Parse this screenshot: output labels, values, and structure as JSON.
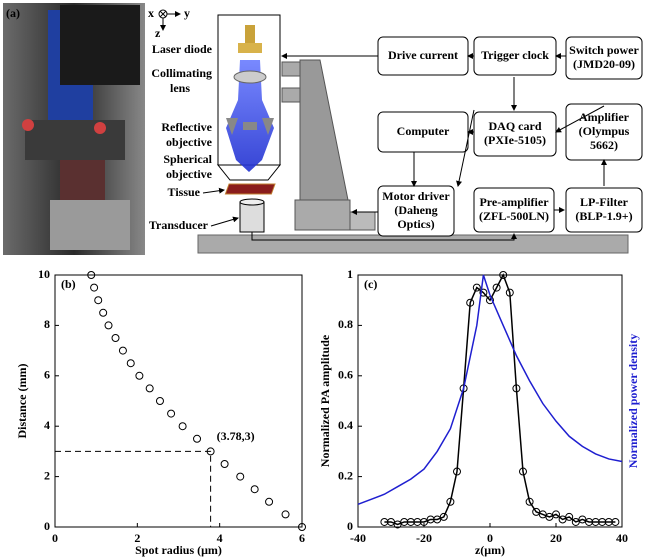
{
  "panel_a": {
    "label": "(a)",
    "axes": [
      "x",
      "y",
      "z"
    ],
    "components": [
      {
        "lines": [
          "Laser diode"
        ]
      },
      {
        "lines": [
          "Collimating",
          "lens"
        ]
      },
      {
        "lines": [
          "Reflective",
          "objective"
        ]
      },
      {
        "lines": [
          "Spherical",
          "objective"
        ]
      },
      {
        "lines": [
          "Tissue"
        ]
      },
      {
        "lines": [
          "Transducer"
        ]
      }
    ],
    "boxes": [
      {
        "lines": [
          "Drive current"
        ]
      },
      {
        "lines": [
          "Trigger clock"
        ]
      },
      {
        "lines": [
          "Switch power",
          "(JMD20-09)"
        ]
      },
      {
        "lines": [
          "Computer"
        ]
      },
      {
        "lines": [
          "DAQ card",
          "(PXIe-5105)"
        ]
      },
      {
        "lines": [
          "Amplifier",
          "(Olympus",
          "5662)"
        ]
      },
      {
        "lines": [
          "Motor driver",
          "(Daheng",
          "Optics)"
        ]
      },
      {
        "lines": [
          "Pre-amplifier",
          "(ZFL-500LN)"
        ]
      },
      {
        "lines": [
          "LP-Filter",
          "(BLP-1.9+)"
        ]
      }
    ]
  },
  "chart_data": [
    {
      "type": "scatter",
      "panel_label": "(b)",
      "xlabel": "Spot radius (μm)",
      "ylabel": "Distance (mm)",
      "x": [
        6.0,
        5.6,
        5.2,
        4.85,
        4.5,
        4.12,
        3.78,
        3.45,
        3.1,
        2.82,
        2.55,
        2.3,
        2.05,
        1.84,
        1.65,
        1.47,
        1.3,
        1.17,
        1.05,
        0.95,
        0.88
      ],
      "values": [
        0,
        0.5,
        1,
        1.5,
        2,
        2.5,
        3,
        3.5,
        4,
        4.5,
        5,
        5.5,
        6,
        6.5,
        7,
        7.5,
        8,
        8.5,
        9,
        9.5,
        10
      ],
      "color": "#000000",
      "annotation": {
        "label": "(3.78,3)",
        "x": 3.78,
        "y": 3
      },
      "xlim": [
        0,
        6
      ],
      "xticks": [
        0,
        2,
        4,
        6
      ],
      "ylim": [
        0,
        10
      ],
      "yticks": [
        0,
        2,
        4,
        6,
        8,
        10
      ]
    },
    {
      "type": "line",
      "panel_label": "(c)",
      "xlabel": "z(μm)",
      "ylabel": "Normalized PA amplitude",
      "y2label": "Normalized power density",
      "series": [
        {
          "name": "Normalized PA amplitude",
          "color": "#000000",
          "marker": "circle",
          "x": [
            -32,
            -30,
            -28,
            -26,
            -24,
            -22,
            -20,
            -18,
            -16,
            -14,
            -12,
            -10,
            -8,
            -6,
            -4,
            -2,
            0,
            2,
            4,
            6,
            8,
            10,
            12,
            14,
            16,
            18,
            20,
            22,
            24,
            26,
            28,
            30,
            32,
            34,
            36,
            38
          ],
          "values": [
            0.02,
            0.02,
            0.01,
            0.02,
            0.02,
            0.02,
            0.02,
            0.03,
            0.03,
            0.04,
            0.1,
            0.22,
            0.55,
            0.89,
            0.95,
            0.93,
            0.9,
            0.95,
            1.0,
            0.93,
            0.55,
            0.22,
            0.1,
            0.06,
            0.05,
            0.04,
            0.05,
            0.03,
            0.04,
            0.02,
            0.03,
            0.02,
            0.02,
            0.02,
            0.02,
            0.02
          ]
        },
        {
          "name": "Normalized power density",
          "color": "#1f1fd0",
          "axis": "y2",
          "x": [
            -40,
            -36,
            -32,
            -28,
            -24,
            -20,
            -16,
            -12,
            -8,
            -4,
            -2,
            0,
            4,
            8,
            12,
            16,
            20,
            24,
            28,
            32,
            36,
            40
          ],
          "values": [
            0.09,
            0.11,
            0.13,
            0.16,
            0.19,
            0.23,
            0.3,
            0.39,
            0.55,
            0.8,
            1.0,
            0.92,
            0.8,
            0.68,
            0.58,
            0.49,
            0.42,
            0.36,
            0.32,
            0.29,
            0.27,
            0.26
          ]
        }
      ],
      "xlim": [
        -40,
        40
      ],
      "xticks": [
        -40,
        -20,
        0,
        20,
        40
      ],
      "ylim": [
        0,
        1
      ],
      "yticks": [
        0,
        0.2,
        0.4,
        0.6,
        0.8,
        1
      ],
      "y2lim": [
        0,
        1
      ]
    }
  ]
}
